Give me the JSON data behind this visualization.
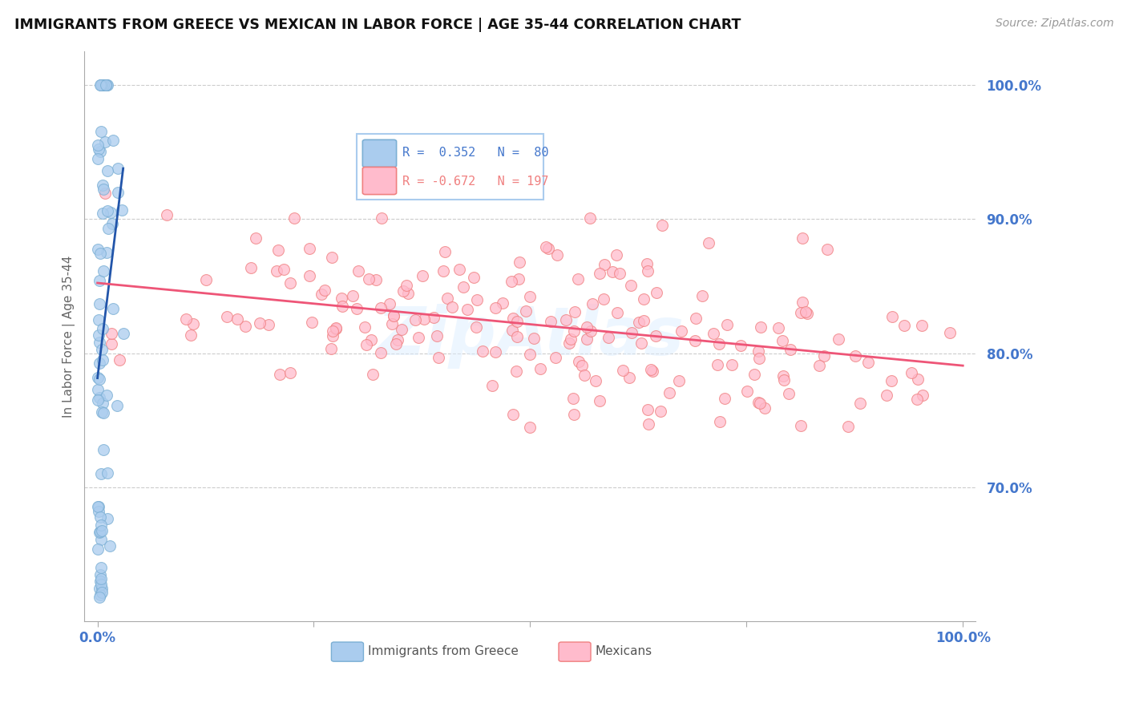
{
  "title": "IMMIGRANTS FROM GREECE VS MEXICAN IN LABOR FORCE | AGE 35-44 CORRELATION CHART",
  "source": "Source: ZipAtlas.com",
  "ylabel": "In Labor Force | Age 35-44",
  "greece_color": "#7bafd4",
  "greece_face_color": "#aaccee",
  "mexico_color": "#f08080",
  "mexico_face_color": "#ffbbcc",
  "greece_line_color": "#2255aa",
  "mexico_line_color": "#ee5577",
  "background_color": "#ffffff",
  "watermark": "ZipAtlas",
  "grid_color": "#cccccc",
  "axis_label_color": "#4477cc",
  "ylim": [
    0.6,
    1.025
  ],
  "xlim": [
    -0.015,
    1.015
  ]
}
